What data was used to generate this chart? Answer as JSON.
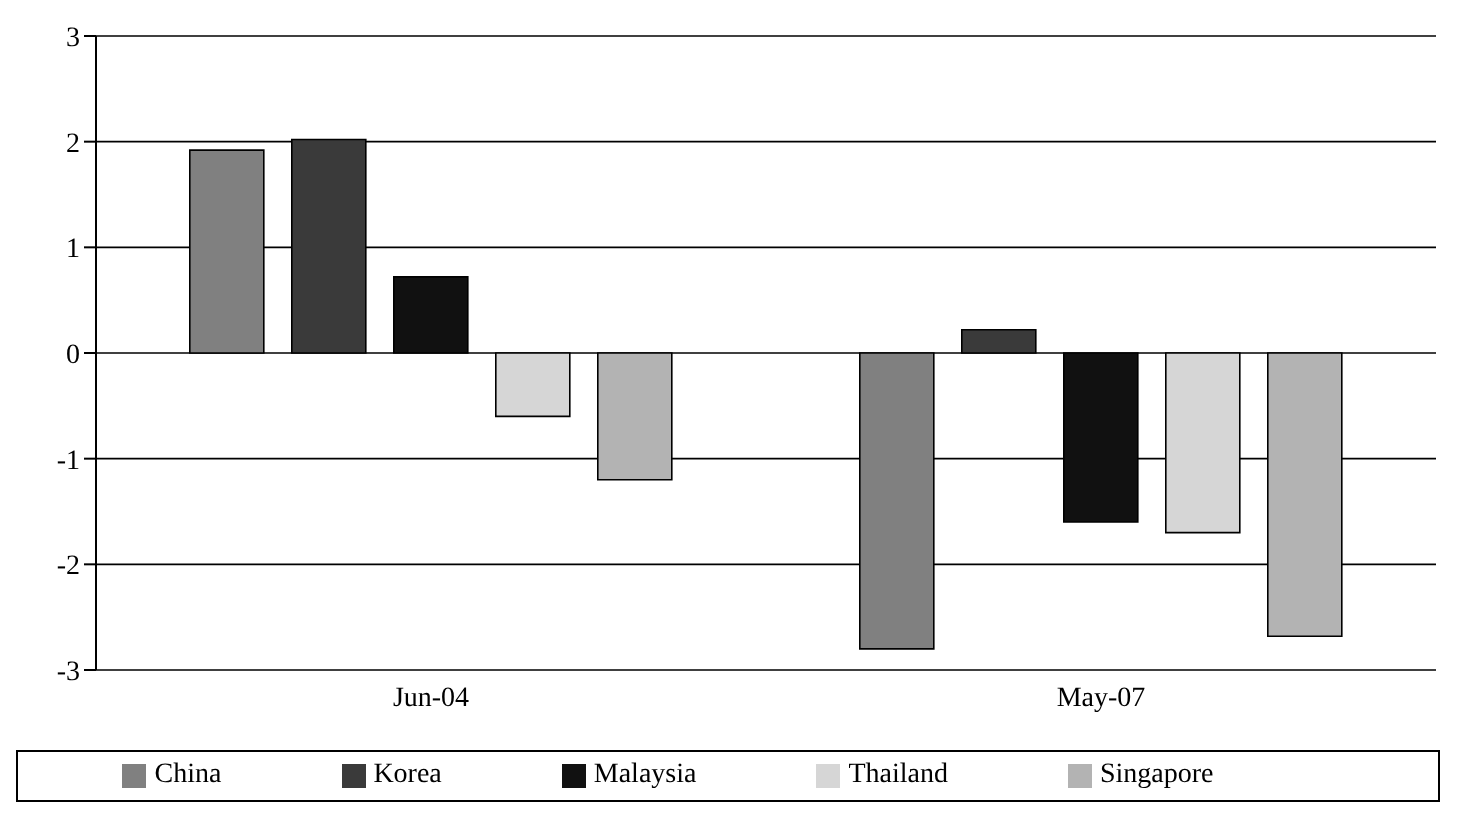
{
  "chart_data": {
    "type": "bar",
    "categories": [
      "Jun-04",
      "May-07"
    ],
    "series": [
      {
        "name": "China",
        "color": "#808080",
        "values": [
          1.92,
          -2.8
        ]
      },
      {
        "name": "Korea",
        "color": "#3a3a3a",
        "values": [
          2.02,
          0.22
        ]
      },
      {
        "name": "Malaysia",
        "color": "#111111",
        "values": [
          0.72,
          -1.6
        ]
      },
      {
        "name": "Thailand",
        "color": "#d6d6d6",
        "values": [
          -0.6,
          -1.7
        ]
      },
      {
        "name": "Singapore",
        "color": "#b3b3b3",
        "values": [
          -1.2,
          -2.68
        ]
      }
    ],
    "ylim": [
      -3,
      3
    ],
    "yticks": [
      -3,
      -2,
      -1,
      0,
      1,
      2,
      3
    ],
    "grid": "y",
    "legend": "bottom"
  }
}
